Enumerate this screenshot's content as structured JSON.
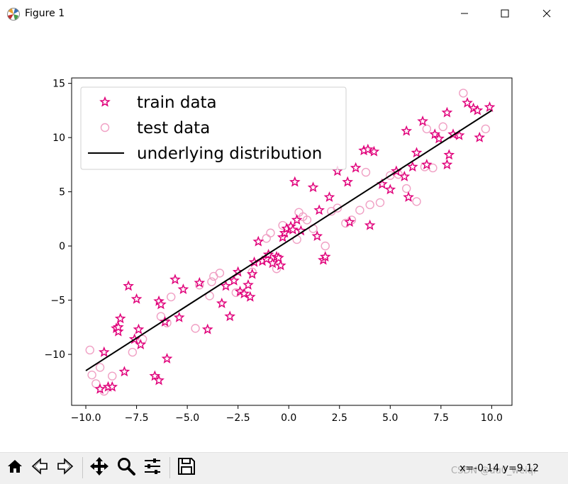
{
  "window": {
    "title": "Figure 1",
    "controls": {
      "minimize_icon": "minimize-icon",
      "maximize_icon": "maximize-icon",
      "close_icon": "close-icon"
    }
  },
  "toolbar": {
    "buttons": [
      "home-icon",
      "back-icon",
      "forward-icon",
      "pan-icon",
      "zoom-icon",
      "configure-subplots-icon",
      "save-icon"
    ],
    "coords_text": "x=-0.14 y=9.12",
    "watermark": "CSDN @du0_weiqi"
  },
  "colors": {
    "train": "#e0007a",
    "test": "#f0a0c4",
    "line": "#000000"
  },
  "chart_data": {
    "type": "scatter",
    "title": "",
    "xlabel": "",
    "ylabel": "",
    "xlim": [
      -10.7,
      11.0
    ],
    "ylim": [
      -14.7,
      15.5
    ],
    "xticks": [
      -10.0,
      -7.5,
      -5.0,
      -2.5,
      0.0,
      2.5,
      5.0,
      7.5,
      10.0
    ],
    "xtick_labels": [
      "−10.0",
      "−7.5",
      "−5.0",
      "−2.5",
      "0.0",
      "2.5",
      "5.0",
      "7.5",
      "10.0"
    ],
    "yticks": [
      -10,
      -5,
      0,
      5,
      10,
      15
    ],
    "ytick_labels": [
      "−10",
      "−5",
      "0",
      "5",
      "10",
      "15"
    ],
    "grid": false,
    "legend": {
      "placement": "upper-left",
      "entries": [
        "train data",
        "test data",
        "underlying distribution"
      ]
    },
    "series": [
      {
        "name": "train data",
        "marker": "star",
        "x": [
          -9.3,
          -9.1,
          -8.9,
          -8.7,
          -8.5,
          -8.4,
          -8.4,
          -8.3,
          -8.1,
          -7.9,
          -7.6,
          -7.5,
          -7.4,
          -7.3,
          -6.6,
          -6.4,
          -6.4,
          -6.3,
          -6.1,
          -6.0,
          -5.6,
          -5.4,
          -5.2,
          -4.4,
          -4.0,
          -3.3,
          -3.1,
          -2.9,
          -2.7,
          -2.5,
          -2.4,
          -2.2,
          -2.0,
          -1.9,
          -1.8,
          -1.7,
          -1.5,
          -1.3,
          -1.1,
          -1.0,
          -0.8,
          -0.6,
          -0.5,
          -0.4,
          -0.3,
          -0.2,
          -0.1,
          0.1,
          0.2,
          0.3,
          0.4,
          0.6,
          1.2,
          1.4,
          1.5,
          1.7,
          1.8,
          2.0,
          2.4,
          2.9,
          3.0,
          3.3,
          3.7,
          3.9,
          4.0,
          4.2,
          4.6,
          5.0,
          5.3,
          5.7,
          5.8,
          5.9,
          6.1,
          6.3,
          6.6,
          6.8,
          7.2,
          7.4,
          7.8,
          7.8,
          7.9,
          8.1,
          8.4,
          8.8,
          9.1,
          9.3,
          9.4,
          9.9
        ],
        "y": [
          -13.2,
          -9.8,
          -13.0,
          -13.0,
          -7.6,
          -7.9,
          -7.5,
          -6.7,
          -11.6,
          -3.7,
          -8.6,
          -4.9,
          -7.7,
          -9.1,
          -12.0,
          -12.4,
          -5.1,
          -5.4,
          -7.0,
          -10.4,
          -3.1,
          -6.6,
          -4.0,
          -3.4,
          -7.7,
          -5.3,
          -3.7,
          -6.5,
          -3.2,
          -2.4,
          -4.2,
          -4.4,
          -3.6,
          -4.7,
          -2.6,
          -1.5,
          0.4,
          -1.4,
          -1.2,
          -0.8,
          -1.6,
          -1.0,
          -1.1,
          -1.8,
          0.8,
          1.2,
          1.6,
          1.8,
          1.5,
          5.9,
          2.4,
          1.4,
          5.4,
          0.9,
          3.3,
          -1.3,
          -1.0,
          4.5,
          6.9,
          5.9,
          2.2,
          7.2,
          8.8,
          8.9,
          1.9,
          8.7,
          5.7,
          5.2,
          6.9,
          6.4,
          10.6,
          4.5,
          7.3,
          8.6,
          11.5,
          7.5,
          10.3,
          9.9,
          7.5,
          12.3,
          8.4,
          10.3,
          10.2,
          13.2,
          12.7,
          12.5,
          10.0,
          12.8
        ]
      },
      {
        "name": "test data",
        "marker": "circle-open",
        "x": [
          -9.8,
          -9.7,
          -9.5,
          -9.3,
          -9.1,
          -8.7,
          -7.7,
          -7.2,
          -6.3,
          -6.0,
          -5.8,
          -4.6,
          -4.4,
          -3.9,
          -3.8,
          -3.7,
          -3.4,
          -2.6,
          -1.8,
          -1.1,
          -0.9,
          -0.6,
          -0.3,
          0.4,
          0.5,
          0.7,
          0.9,
          1.2,
          1.8,
          2.1,
          2.4,
          2.8,
          3.1,
          3.5,
          3.8,
          4.0,
          4.5,
          5.0,
          5.4,
          5.8,
          6.3,
          6.7,
          6.8,
          7.1,
          7.6,
          8.6,
          9.7
        ],
        "y": [
          -9.6,
          -11.9,
          -12.7,
          -11.2,
          -13.4,
          -12.0,
          -9.8,
          -8.6,
          -6.5,
          -7.1,
          -4.7,
          -7.6,
          -3.6,
          -4.6,
          -3.3,
          -2.8,
          -2.5,
          -4.3,
          -2.4,
          0.7,
          1.2,
          -2.1,
          1.9,
          0.6,
          3.1,
          2.7,
          2.4,
          1.6,
          0.0,
          3.2,
          3.5,
          2.1,
          2.4,
          3.3,
          6.8,
          3.8,
          4.0,
          6.5,
          6.6,
          5.3,
          4.1,
          7.3,
          10.8,
          7.2,
          11.0,
          14.1,
          10.8
        ]
      },
      {
        "name": "underlying distribution",
        "type": "line",
        "x": [
          -10.0,
          10.0
        ],
        "y": [
          -11.5,
          12.5
        ]
      }
    ]
  }
}
